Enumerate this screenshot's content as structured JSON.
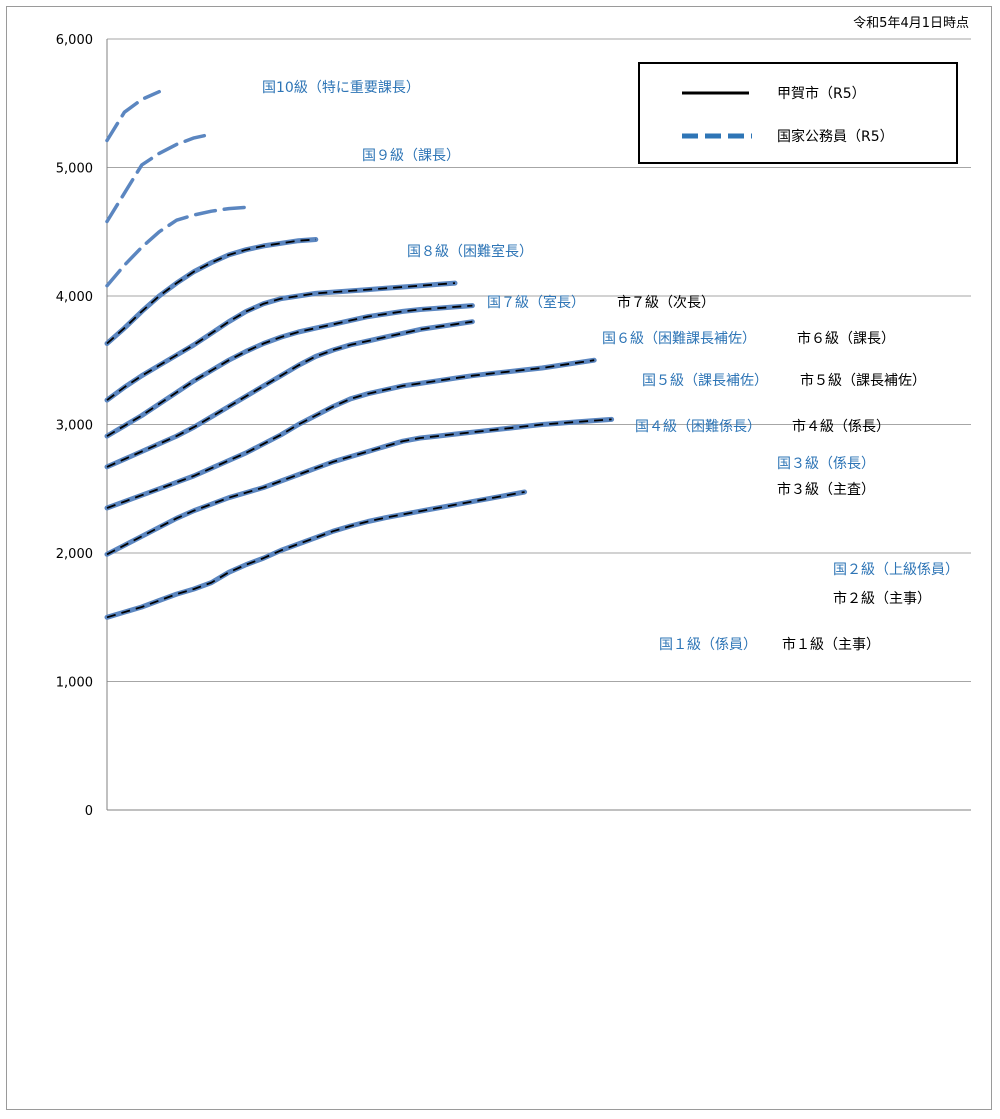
{
  "chart_data": {
    "type": "line",
    "date_note": "令和5年4月1日時点",
    "ylim": [
      0,
      6000
    ],
    "yticks": [
      "0",
      "1,000",
      "2,000",
      "3,000",
      "4,000",
      "5,000",
      "6,000"
    ],
    "xlabel": "",
    "ylabel": "",
    "legend": {
      "placement": "top-right",
      "entries": [
        {
          "label": "甲賀市（R5）",
          "style": "solid",
          "color": "#000000"
        },
        {
          "label": "国家公務員（R5）",
          "style": "dashed",
          "color": "#2e75b6"
        }
      ]
    },
    "colors": {
      "national": "#2e75b6",
      "national_line": "#5b86c0",
      "city": "#000000",
      "grid": "#a6a6a6"
    },
    "series": [
      {
        "national_label": "国１級（係員）",
        "city_label": "市１級（主事）",
        "city": true,
        "values": [
          1500,
          1540,
          1580,
          1630,
          1680,
          1720,
          1770,
          1850,
          1910,
          1960,
          2020,
          2070,
          2120,
          2170,
          2210,
          2245,
          2275,
          2300,
          2325,
          2350,
          2375,
          2400,
          2425,
          2450,
          2475
        ]
      },
      {
        "national_label": "国２級（上級係員）",
        "city_label": "市２級（主事）",
        "city": true,
        "values": [
          1990,
          2060,
          2130,
          2200,
          2270,
          2330,
          2380,
          2430,
          2470,
          2510,
          2560,
          2610,
          2660,
          2710,
          2750,
          2790,
          2830,
          2870,
          2895,
          2910,
          2925,
          2940,
          2955,
          2970,
          2985,
          3000,
          3010,
          3020,
          3030,
          3040
        ]
      },
      {
        "national_label": "国３級（係長）",
        "city_label": "市３級（主査）",
        "city": true,
        "values": [
          2350,
          2400,
          2450,
          2500,
          2550,
          2600,
          2660,
          2720,
          2780,
          2850,
          2920,
          3000,
          3070,
          3140,
          3200,
          3240,
          3270,
          3300,
          3320,
          3340,
          3360,
          3380,
          3395,
          3410,
          3425,
          3440,
          3460,
          3480,
          3500
        ]
      },
      {
        "national_label": "国４級（困難係長）",
        "city_label": "市４級（係長）",
        "city": true,
        "values": [
          2670,
          2730,
          2790,
          2850,
          2910,
          2980,
          3060,
          3140,
          3220,
          3300,
          3380,
          3460,
          3530,
          3580,
          3620,
          3650,
          3680,
          3710,
          3740,
          3760,
          3780,
          3800
        ]
      },
      {
        "national_label": "国５級（課長補佐）",
        "city_label": "市５級（課長補佐）",
        "city": true,
        "values": [
          2910,
          2990,
          3070,
          3160,
          3250,
          3340,
          3420,
          3500,
          3570,
          3630,
          3680,
          3720,
          3750,
          3780,
          3810,
          3840,
          3860,
          3880,
          3895,
          3905,
          3915,
          3925
        ]
      },
      {
        "national_label": "国６級（困難課長補佐）",
        "city_label": "市６級（課長）",
        "city": true,
        "values": [
          3190,
          3290,
          3380,
          3460,
          3540,
          3620,
          3710,
          3800,
          3880,
          3940,
          3980,
          4000,
          4020,
          4030,
          4040,
          4050,
          4060,
          4070,
          4080,
          4090,
          4100
        ]
      },
      {
        "national_label": "国７級（室長）",
        "city_label": "市７級（次長）",
        "city": true,
        "values": [
          3630,
          3750,
          3880,
          4000,
          4100,
          4190,
          4260,
          4320,
          4360,
          4390,
          4410,
          4430,
          4440
        ]
      },
      {
        "national_label": "国８級（困難室長）",
        "city_label": "",
        "city": false,
        "values": [
          4080,
          4240,
          4380,
          4500,
          4590,
          4630,
          4660,
          4680,
          4690
        ]
      },
      {
        "national_label": "国９級（課長）",
        "city_label": "",
        "city": false,
        "values": [
          4580,
          4800,
          5020,
          5110,
          5180,
          5230,
          5260
        ]
      },
      {
        "national_label": "国10級（特に重要課長）",
        "city_label": "",
        "city": false,
        "values": [
          5210,
          5430,
          5530,
          5590
        ]
      }
    ]
  }
}
